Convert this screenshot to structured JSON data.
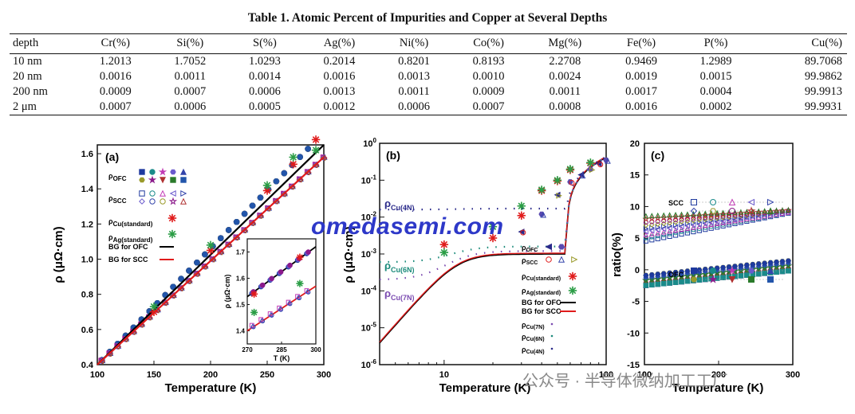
{
  "table": {
    "caption": "Table 1.  Atomic Percent of Impurities and Copper at Several Depths",
    "headers": [
      "depth",
      "Cr(%)",
      "Si(%)",
      "S(%)",
      "Ag(%)",
      "Ni(%)",
      "Co(%)",
      "Mg(%)",
      "Fe(%)",
      "P(%)",
      "Cu(%)"
    ],
    "rows": [
      [
        "10 nm",
        "1.2013",
        "1.7052",
        "1.0293",
        "0.2014",
        "0.8201",
        "0.8193",
        "2.2708",
        "0.9469",
        "1.2989",
        "89.7068"
      ],
      [
        "20 nm",
        "0.0016",
        "0.0011",
        "0.0014",
        "0.0016",
        "0.0013",
        "0.0010",
        "0.0024",
        "0.0019",
        "0.0015",
        "99.9862"
      ],
      [
        "200 nm",
        "0.0009",
        "0.0007",
        "0.0006",
        "0.0013",
        "0.0011",
        "0.0009",
        "0.0011",
        "0.0017",
        "0.0004",
        "99.9913"
      ],
      [
        "2 μm",
        "0.0007",
        "0.0006",
        "0.0005",
        "0.0012",
        "0.0006",
        "0.0007",
        "0.0008",
        "0.0016",
        "0.0002",
        "99.9931"
      ]
    ]
  },
  "watermark": "omedasemi.com",
  "watermark2": "公众号 · 半导体微纳加工工厂",
  "chart_data": [
    {
      "type": "scatter",
      "panel": "(a)",
      "xlabel": "Temperature (K)",
      "ylabel": "ρ (μΩ·cm)",
      "xlim": [
        100,
        300
      ],
      "ylim": [
        0.4,
        1.65
      ],
      "xticks": [
        "100",
        "150",
        "200",
        "250",
        "300"
      ],
      "yticks": [
        "0.4",
        "0.6",
        "0.8",
        "1.0",
        "1.2",
        "1.4",
        "1.6"
      ],
      "legend": [
        "ρOFC",
        "ρSCC",
        "ρCu(standard)",
        "ρAg(standard)",
        "BG for OFC",
        "BG for SCC"
      ],
      "series": [
        {
          "name": "BG for OFC",
          "color": "#000000",
          "x": [
            100,
            300
          ],
          "y": [
            0.4,
            1.72
          ]
        },
        {
          "name": "BG for SCC",
          "color": "#e01b1b",
          "x": [
            100,
            300
          ],
          "y": [
            0.4,
            1.58
          ]
        },
        {
          "name": "ρCu(standard)",
          "color": "#e01b1b",
          "x": [
            150,
            200,
            250,
            273,
            293
          ],
          "y": [
            0.7,
            1.05,
            1.39,
            1.54,
            1.68
          ]
        },
        {
          "name": "ρAg(standard)",
          "color": "#2a9d45",
          "x": [
            150,
            200,
            250,
            273,
            293
          ],
          "y": [
            0.73,
            1.08,
            1.42,
            1.58,
            1.62
          ]
        }
      ],
      "inset": {
        "xlabel": "T (K)",
        "ylabel": "ρ (μΩ·cm)",
        "xlim": [
          270,
          300
        ],
        "ylim": [
          1.35,
          1.75
        ],
        "xticks": [
          "270",
          "285",
          "300"
        ],
        "yticks": [
          "1.4",
          "1.5",
          "1.6",
          "1.7"
        ]
      }
    },
    {
      "type": "line",
      "panel": "(b)",
      "xlabel": "Temperature (K)",
      "ylabel": "ρ (μΩ·cm)",
      "xscale": "log",
      "yscale": "log",
      "xlim": [
        4,
        100
      ],
      "ylim": [
        1e-06,
        1
      ],
      "xticks": [
        "10",
        "100"
      ],
      "yticks": [
        "10-6",
        "10-5",
        "10-4",
        "10-3",
        "10-2",
        "10-1",
        "100"
      ],
      "legend": [
        "ρOFC",
        "ρSCC",
        "ρCu(standard)",
        "ρAg(standard)",
        "BG for OFC",
        "BG for SCC",
        "ρCu(7N)",
        "ρCu(6N)",
        "ρCu(4N)"
      ],
      "annotations": [
        "ρCu(4N)",
        "ρCu(6N)",
        "ρCu(7N)"
      ]
    },
    {
      "type": "scatter",
      "panel": "(c)",
      "xlabel": "Temperature (K)",
      "ylabel": "ratio(%)",
      "xlim": [
        100,
        300
      ],
      "ylim": [
        -15,
        20
      ],
      "xticks": [
        "100",
        "200",
        "300"
      ],
      "yticks": [
        "-15",
        "-10",
        "-5",
        "0",
        "5",
        "10",
        "15",
        "20"
      ],
      "legend": [
        "SCC",
        "OFC"
      ]
    }
  ]
}
